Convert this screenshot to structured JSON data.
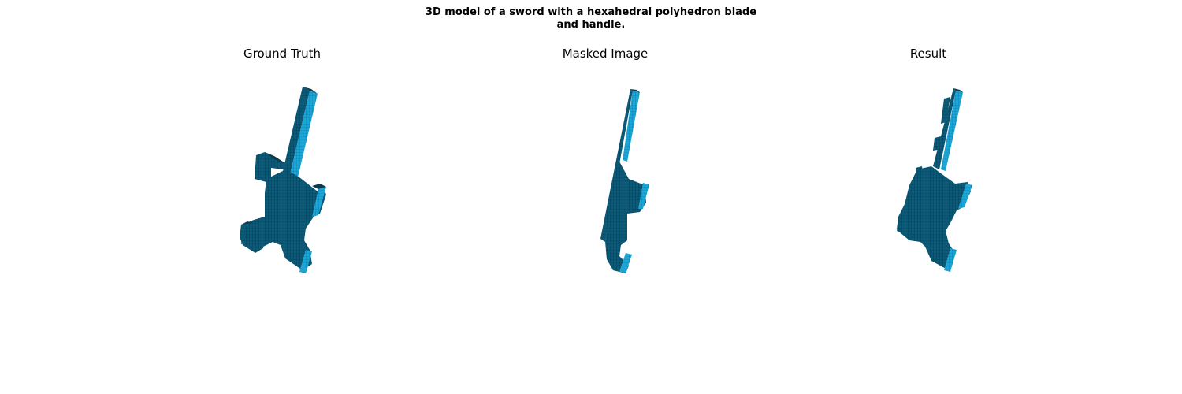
{
  "figure": {
    "title_line1": "3D model of a sword with a hexahedral polyhedron blade",
    "title_line2": "and handle."
  },
  "panels": [
    {
      "title": "Ground Truth"
    },
    {
      "title": "Masked Image"
    },
    {
      "title": "Result"
    }
  ],
  "colors": {
    "front": "#0a5a78",
    "side": "#1ba6d8",
    "top": "#0b3a4c",
    "grid": "#063447"
  }
}
